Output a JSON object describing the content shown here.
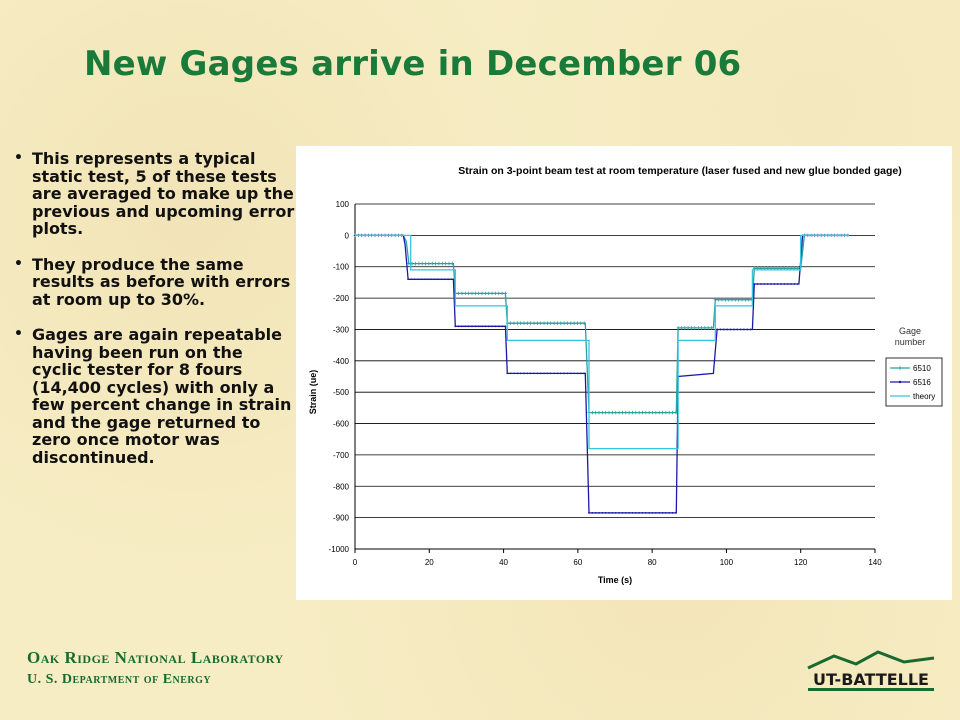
{
  "slide": {
    "title": "New Gages arrive in December 06",
    "bullets": [
      "This represents a typical static test, 5 of these tests are averaged to make up the previous and upcoming error plots.",
      "They produce the same results as before with errors at room up to 30%.",
      "Gages are again repeatable having been run on the cyclic tester for 8 fours (14,400 cycles) with only a few percent change in strain and the gage returned to zero once motor was discontinued."
    ],
    "bullet_glyph": "•",
    "footer_line1": "Oak Ridge National Laboratory",
    "footer_line2": "U. S. Department of Energy",
    "logo_text": "UT-BATTELLE",
    "colors": {
      "title": "#1a7a3a",
      "footer": "#1a6a30",
      "background": "#f7edc4"
    }
  },
  "chart_data": {
    "type": "line",
    "title": "Strain on 3-point beam test at room temperature (laser fused and new glue bonded gage)",
    "xlabel": "Time (s)",
    "ylabel": "Strain (ue)",
    "xlim": [
      0,
      140
    ],
    "ylim": [
      -1000,
      100
    ],
    "xticks": [
      0,
      20,
      40,
      60,
      80,
      100,
      120,
      140
    ],
    "yticks": [
      100,
      0,
      -100,
      -200,
      -300,
      -400,
      -500,
      -600,
      -700,
      -800,
      -900,
      -1000
    ],
    "grid": "horizontal",
    "legend_title": "Gage number",
    "legend_position": "right",
    "series": [
      {
        "name": "6510",
        "color": "#2aa0a0",
        "marker": "+",
        "points": [
          [
            0,
            0
          ],
          [
            13,
            0
          ],
          [
            13.8,
            -20
          ],
          [
            14.5,
            -90
          ],
          [
            26.5,
            -90
          ],
          [
            27,
            -185
          ],
          [
            40.5,
            -185
          ],
          [
            41,
            -280
          ],
          [
            62,
            -280
          ],
          [
            63,
            -565
          ],
          [
            86.5,
            -565
          ],
          [
            87,
            -295
          ],
          [
            96.5,
            -295
          ],
          [
            97,
            -205
          ],
          [
            107,
            -205
          ],
          [
            107.5,
            -105
          ],
          [
            120,
            -105
          ],
          [
            121,
            0
          ],
          [
            133,
            0
          ]
        ]
      },
      {
        "name": "6516",
        "color": "#1a1aa8",
        "marker": "•",
        "points": [
          [
            0,
            0
          ],
          [
            13,
            0
          ],
          [
            13.5,
            -30
          ],
          [
            14.3,
            -140
          ],
          [
            26.5,
            -140
          ],
          [
            27,
            -290
          ],
          [
            40.5,
            -290
          ],
          [
            41,
            -440
          ],
          [
            62,
            -440
          ],
          [
            63,
            -885
          ],
          [
            86.5,
            -885
          ],
          [
            87,
            -450
          ],
          [
            96.5,
            -440
          ],
          [
            97.5,
            -300
          ],
          [
            107,
            -300
          ],
          [
            107.5,
            -155
          ],
          [
            119.5,
            -155
          ],
          [
            120.5,
            0
          ],
          [
            133,
            0
          ]
        ]
      },
      {
        "name": "theory",
        "color": "#33c6e0",
        "marker": "",
        "points": [
          [
            0,
            0
          ],
          [
            15,
            0
          ],
          [
            15,
            -110
          ],
          [
            27,
            -110
          ],
          [
            27,
            -225
          ],
          [
            41,
            -225
          ],
          [
            41,
            -335
          ],
          [
            63,
            -335
          ],
          [
            63,
            -680
          ],
          [
            87,
            -680
          ],
          [
            87,
            -335
          ],
          [
            97,
            -335
          ],
          [
            97,
            -225
          ],
          [
            107,
            -225
          ],
          [
            107,
            -110
          ],
          [
            120,
            -110
          ],
          [
            120,
            0
          ],
          [
            133,
            0
          ]
        ]
      }
    ]
  }
}
